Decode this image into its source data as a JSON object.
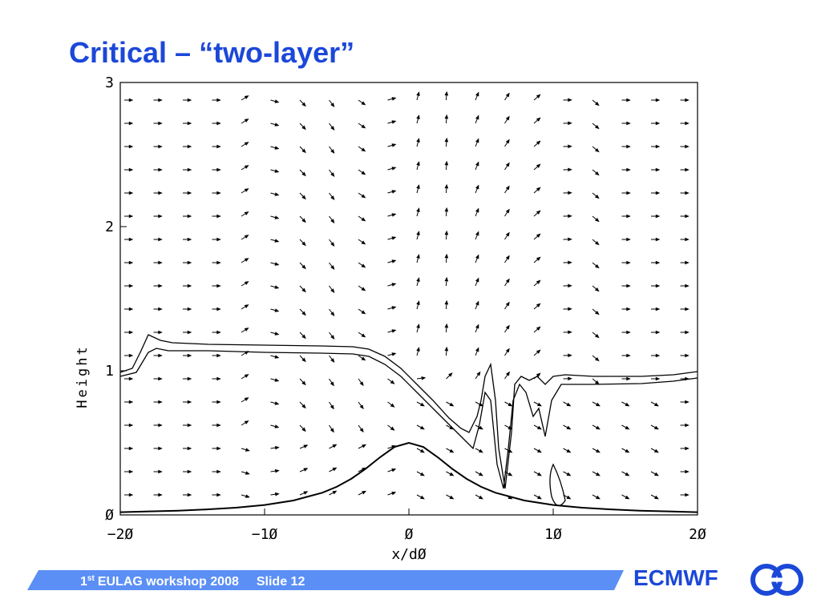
{
  "title": "Critical – “two-layer”",
  "footer": {
    "number": "1",
    "suffix": "st",
    "event": "EULAG workshop 2008",
    "slide": "Slide 12"
  },
  "logo": "ECMWF",
  "chart_data": {
    "type": "line",
    "x_label": "x/dØ",
    "y_label": "Height",
    "xlim": [
      -20,
      20
    ],
    "ylim": [
      0,
      3
    ],
    "xticks": [
      {
        "value": -20,
        "label": "−2Ø"
      },
      {
        "value": -10,
        "label": "−1Ø"
      },
      {
        "value": 0,
        "label": "Ø"
      },
      {
        "value": 10,
        "label": "1Ø"
      },
      {
        "value": 20,
        "label": "2Ø"
      }
    ],
    "yticks": [
      {
        "value": 0,
        "label": "Ø"
      },
      1,
      2,
      3
    ],
    "x": [
      -20,
      -18,
      -16,
      -14,
      -12,
      -10,
      -8,
      -6,
      -5,
      -4,
      -3,
      -2,
      -1,
      0,
      1,
      2,
      3,
      4,
      5,
      6,
      8,
      10,
      12,
      14,
      16,
      18,
      20
    ],
    "series": [
      {
        "color": "#000000",
        "values": [
          0.019,
          0.024,
          0.029,
          0.038,
          0.05,
          0.069,
          0.1,
          0.154,
          0.195,
          0.25,
          0.32,
          0.4,
          0.471,
          0.5,
          0.471,
          0.4,
          0.32,
          0.25,
          0.195,
          0.154,
          0.1,
          0.069,
          0.05,
          0.038,
          0.029,
          0.024,
          0.019
        ]
      }
    ]
  }
}
